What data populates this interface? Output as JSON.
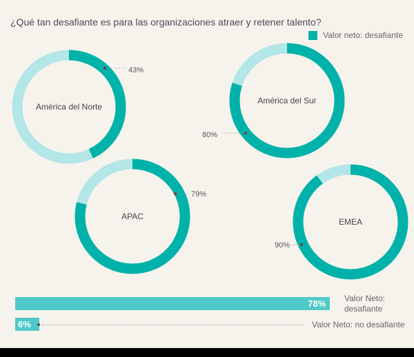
{
  "chart_data": [
    {
      "type": "donut",
      "title": "¿Qué tan desafiante es para las organizaciones atraer y retener talento?",
      "legend": "Valor neto: desafiante",
      "regions": [
        {
          "name": "América del Norte",
          "value": 43,
          "label": "43%"
        },
        {
          "name": "América del Sur",
          "value": 80,
          "label": "80%"
        },
        {
          "name": "APAC",
          "value": 79,
          "label": "79%"
        },
        {
          "name": "EMEA",
          "value": 90,
          "label": "90%"
        }
      ]
    },
    {
      "type": "bar",
      "orientation": "horizontal",
      "bars": [
        {
          "name": "Valor Neto: desafiante",
          "value": 78,
          "label": "78%"
        },
        {
          "name": "Valor Neto: no desafiante",
          "value": 6,
          "label": "6%"
        }
      ]
    }
  ],
  "colors": {
    "dark": "#00b2a9",
    "light": "#b3e6e6",
    "bar": "#4fc9c8"
  }
}
